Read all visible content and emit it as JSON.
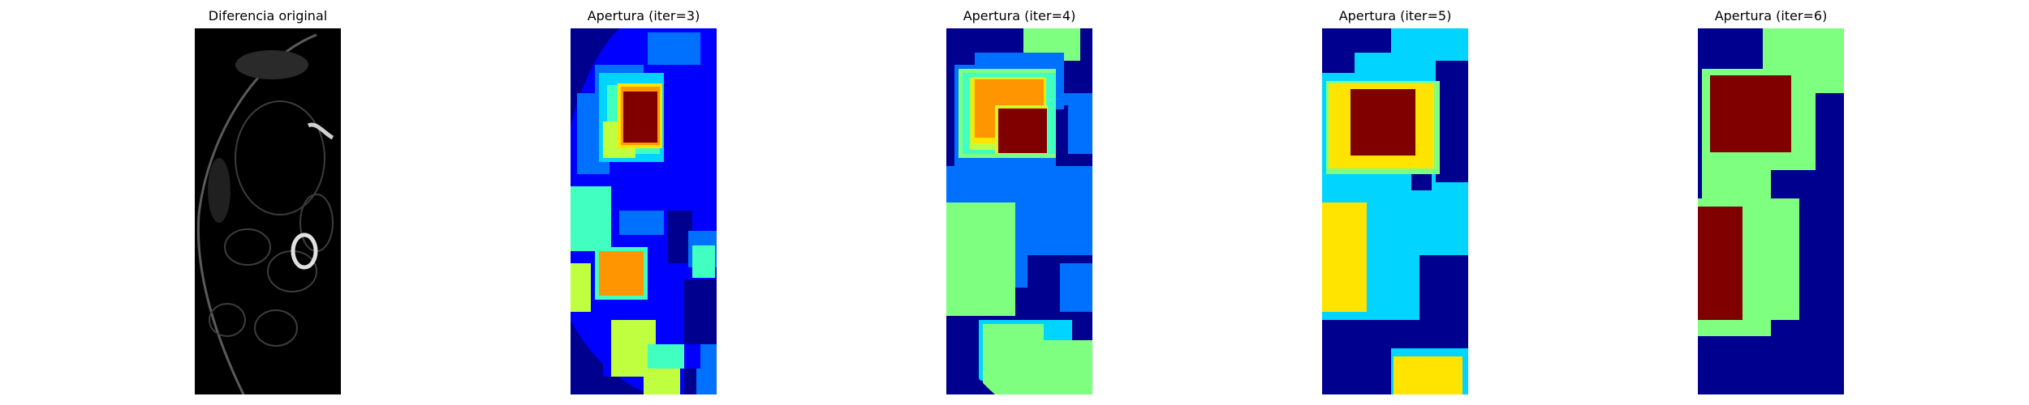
{
  "figure": {
    "panels": [
      {
        "title": "Diferencia original",
        "image": "grayscale-difference-image"
      },
      {
        "title": "Apertura (iter=3)",
        "image": "jet-colormap-label-image"
      },
      {
        "title": "Apertura (iter=4)",
        "image": "jet-colormap-label-image"
      },
      {
        "title": "Apertura (iter=5)",
        "image": "jet-colormap-label-image"
      },
      {
        "title": "Apertura (iter=6)",
        "image": "jet-colormap-label-image"
      }
    ]
  },
  "colors": {
    "navy": "#00008f",
    "blue": "#0000ff",
    "mid_blue": "#0070ff",
    "cyan": "#00d4ff",
    "teal": "#40ffc0",
    "light_green": "#7fff7f",
    "yellow_green": "#bfff40",
    "yellow": "#ffe400",
    "orange": "#ff9500",
    "dark_red": "#800000",
    "black": "#000000"
  }
}
